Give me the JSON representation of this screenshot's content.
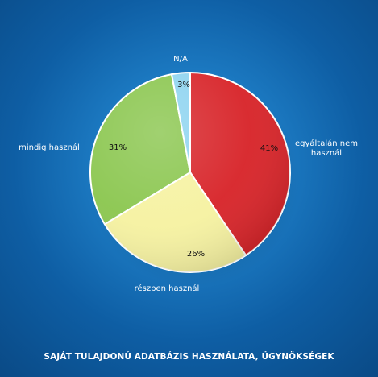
{
  "chart_data": {
    "type": "pie",
    "title": "SAJÁT TULAJDONÚ ADATBÁZIS HASZNÁLATA, ÜGYNÖKSÉGEK",
    "slices": [
      {
        "label": "egyáltalán nem használ",
        "value": 41,
        "value_label": "41%",
        "color": "#d8262b"
      },
      {
        "label": "részben használ",
        "value": 26,
        "value_label": "26%",
        "color": "#f6f2a2"
      },
      {
        "label": "mindig használ",
        "value": 31,
        "value_label": "31%",
        "color": "#8cc751"
      },
      {
        "label": "N/A",
        "value": 3,
        "value_label": "3%",
        "color": "#8fd4f0"
      }
    ],
    "legend": "none",
    "start_angle_deg": 0,
    "direction": "clockwise"
  }
}
